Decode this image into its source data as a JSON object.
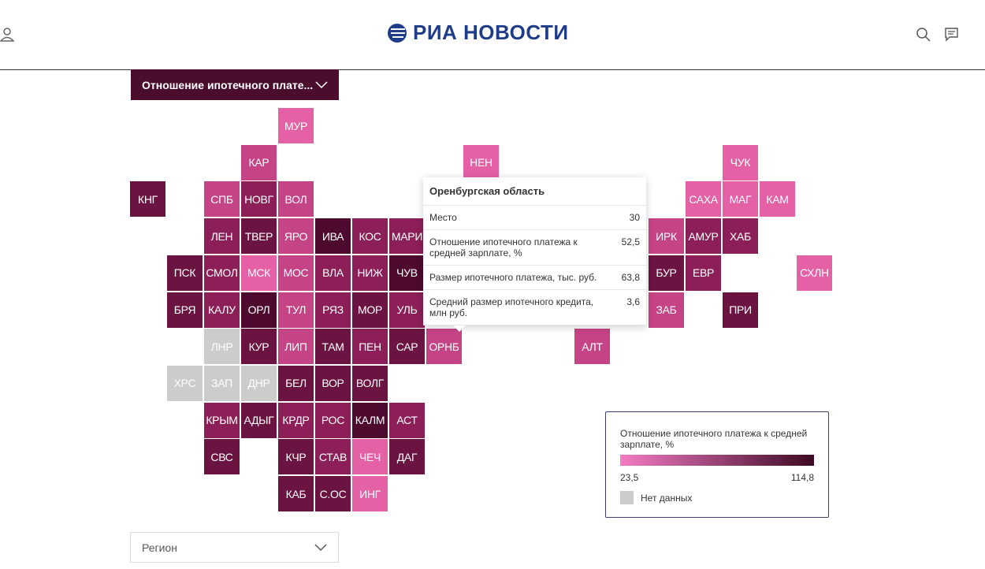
{
  "header": {
    "logo": "РИА НОВОСТИ"
  },
  "indicator_select": {
    "label": "Отношение ипотечного плате..."
  },
  "tiles": [
    {
      "label": "МУР",
      "color": "#e461a6"
    },
    {
      "label": "КАР",
      "color": "#c54486"
    },
    {
      "label": "НЕН",
      "color": "#e461a6"
    },
    {
      "label": "ЧУК",
      "color": "#e461a6"
    },
    {
      "label": "КНГ",
      "color": "#6b1441"
    },
    {
      "label": "СПБ",
      "color": "#c54486"
    },
    {
      "label": "НОВГ",
      "color": "#8c1f57"
    },
    {
      "label": "ВОЛ",
      "color": "#c54486"
    },
    {
      "label": "САХА",
      "color": "#e461a6"
    },
    {
      "label": "МАГ",
      "color": "#e461a6"
    },
    {
      "label": "КАМ",
      "color": "#e461a6"
    },
    {
      "label": "ЛЕН",
      "color": "#8c1f57"
    },
    {
      "label": "ТВЕР",
      "color": "#6b1441"
    },
    {
      "label": "ЯРО",
      "color": "#c54486"
    },
    {
      "label": "ИВА",
      "color": "#4d0a2e"
    },
    {
      "label": "КОС",
      "color": "#8c1f57"
    },
    {
      "label": "МАРИ",
      "color": "#8c1f57"
    },
    {
      "label": "ИРК",
      "color": "#c54486"
    },
    {
      "label": "АМУР",
      "color": "#8c1f57"
    },
    {
      "label": "ХАБ",
      "color": "#8c1f57"
    },
    {
      "label": "ПСК",
      "color": "#6b1441"
    },
    {
      "label": "СМОЛ",
      "color": "#8c1f57"
    },
    {
      "label": "МСК",
      "color": "#e461a6"
    },
    {
      "label": "МОС",
      "color": "#c54486"
    },
    {
      "label": "ВЛА",
      "color": "#8c1f57"
    },
    {
      "label": "НИЖ",
      "color": "#8c1f57"
    },
    {
      "label": "ЧУВ",
      "color": "#4d0a2e"
    },
    {
      "label": "БУР",
      "color": "#6b1441"
    },
    {
      "label": "ЕВР",
      "color": "#8c1f57"
    },
    {
      "label": "СХЛН",
      "color": "#e461a6"
    },
    {
      "label": "БРЯ",
      "color": "#6b1441"
    },
    {
      "label": "КАЛУ",
      "color": "#8c1f57"
    },
    {
      "label": "ОРЛ",
      "color": "#4d0a2e"
    },
    {
      "label": "ТУЛ",
      "color": "#c54486"
    },
    {
      "label": "РЯЗ",
      "color": "#8c1f57"
    },
    {
      "label": "МОР",
      "color": "#6b1441"
    },
    {
      "label": "УЛЬ",
      "color": "#8c1f57"
    },
    {
      "label": "ЗАБ",
      "color": "#c54486"
    },
    {
      "label": "ПРИ",
      "color": "#6b1441"
    },
    {
      "label": "ЛНР",
      "color": "#cccccc"
    },
    {
      "label": "КУР",
      "color": "#6b1441"
    },
    {
      "label": "ЛИП",
      "color": "#c54486"
    },
    {
      "label": "ТАМ",
      "color": "#6b1441"
    },
    {
      "label": "ПЕН",
      "color": "#8c1f57"
    },
    {
      "label": "САР",
      "color": "#6b1441"
    },
    {
      "label": "ОРНБ",
      "color": "#c54486"
    },
    {
      "label": "АЛТ",
      "color": "#c54486"
    },
    {
      "label": "ХРС",
      "color": "#cccccc"
    },
    {
      "label": "ЗАП",
      "color": "#cccccc"
    },
    {
      "label": "ДНР",
      "color": "#cccccc"
    },
    {
      "label": "БЕЛ",
      "color": "#6b1441"
    },
    {
      "label": "ВОР",
      "color": "#6b1441"
    },
    {
      "label": "ВОЛГ",
      "color": "#6b1441"
    },
    {
      "label": "КРЫМ",
      "color": "#8c1f57"
    },
    {
      "label": "АДЫГ",
      "color": "#6b1441"
    },
    {
      "label": "КРДР",
      "color": "#8c1f57"
    },
    {
      "label": "РОС",
      "color": "#8c1f57"
    },
    {
      "label": "КАЛМ",
      "color": "#4d0a2e"
    },
    {
      "label": "АСТ",
      "color": "#8c1f57"
    },
    {
      "label": "СВС",
      "color": "#6b1441"
    },
    {
      "label": "КЧР",
      "color": "#6b1441"
    },
    {
      "label": "СТАВ",
      "color": "#8c1f57"
    },
    {
      "label": "ЧЕЧ",
      "color": "#e461a6"
    },
    {
      "label": "ДАГ",
      "color": "#6b1441"
    },
    {
      "label": "КАБ",
      "color": "#6b1441"
    },
    {
      "label": "С.ОС",
      "color": "#6b1441"
    },
    {
      "label": "ИНГ",
      "color": "#e461a6"
    }
  ],
  "tooltip": {
    "title": "Оренбургская область",
    "rows": [
      {
        "label": "Место",
        "value": "30"
      },
      {
        "label": "Отношение ипотечного платежа к средней зарплате, %",
        "value": "52,5"
      },
      {
        "label": "Размер ипотечного платежа, тыс. руб.",
        "value": "63,8"
      },
      {
        "label": "Средний размер ипотечного кредита, млн руб.",
        "value": "3,6"
      }
    ]
  },
  "legend": {
    "title": "Отношение ипотечного платежа к средней зарплате, %",
    "min": "23,5",
    "max": "114,8",
    "no_data": "Нет данных"
  },
  "region_select": {
    "label": "Регион"
  }
}
